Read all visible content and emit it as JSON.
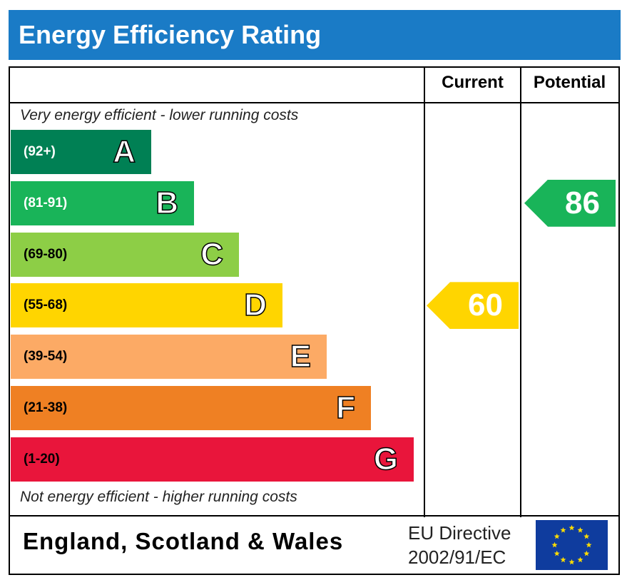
{
  "title": "Energy Efficiency Rating",
  "columns": {
    "current": "Current",
    "potential": "Potential"
  },
  "notes": {
    "top": "Very energy efficient - lower running costs",
    "bottom": "Not energy efficient - higher running costs"
  },
  "chart_data": {
    "type": "bar",
    "bands": [
      {
        "letter": "A",
        "range": "(92+)",
        "color": "#008054",
        "text_color": "#ffffff"
      },
      {
        "letter": "B",
        "range": "(81-91)",
        "color": "#19b459",
        "text_color": "#ffffff"
      },
      {
        "letter": "C",
        "range": "(69-80)",
        "color": "#8dce46",
        "text_color": "#000000"
      },
      {
        "letter": "D",
        "range": "(55-68)",
        "color": "#ffd500",
        "text_color": "#000000"
      },
      {
        "letter": "E",
        "range": "(39-54)",
        "color": "#fcaa65",
        "text_color": "#000000"
      },
      {
        "letter": "F",
        "range": "(21-38)",
        "color": "#ef8023",
        "text_color": "#000000"
      },
      {
        "letter": "G",
        "range": "(1-20)",
        "color": "#e9153b",
        "text_color": "#000000"
      }
    ],
    "current": {
      "value": "60",
      "band": "D",
      "color": "#ffd500"
    },
    "potential": {
      "value": "86",
      "band": "B",
      "color": "#19b459"
    }
  },
  "footer": {
    "region": "England, Scotland & Wales",
    "directive_line1": "EU Directive",
    "directive_line2": "2002/91/EC"
  },
  "colors": {
    "title_bar": "#1a7bc6",
    "eu_flag": "#0f3c9e",
    "eu_star": "#ffdd00"
  }
}
